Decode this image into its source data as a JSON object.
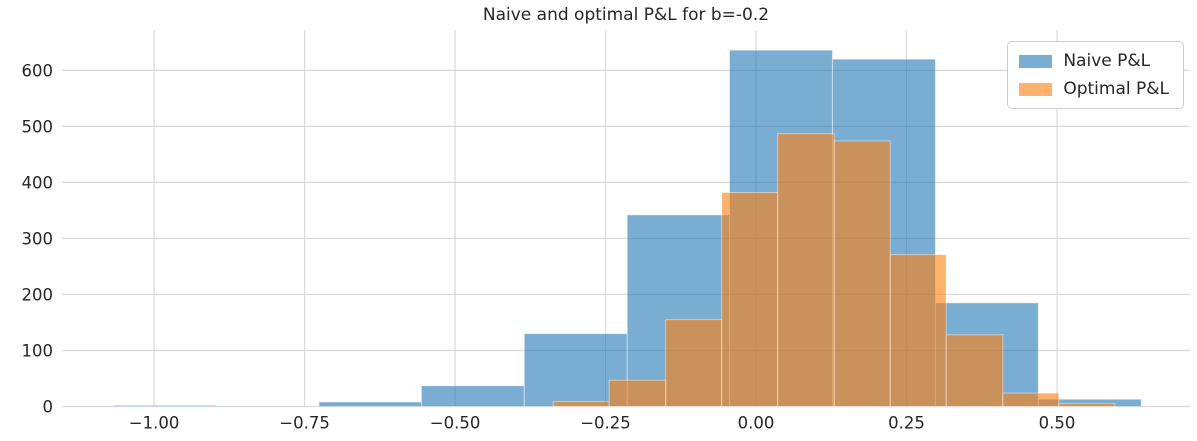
{
  "chart_data": {
    "type": "histogram",
    "title": "Naive and optimal P&L for b=-0.2",
    "xlabel": "",
    "ylabel": "",
    "x_ticks": [
      -1.0,
      -0.75,
      -0.5,
      -0.25,
      0.0,
      0.25,
      0.5
    ],
    "x_tick_labels": [
      "−1.00",
      "−0.75",
      "−0.50",
      "−0.25",
      "0.00",
      "0.25",
      "0.50"
    ],
    "y_ticks": [
      0,
      100,
      200,
      300,
      400,
      500,
      600
    ],
    "y_tick_labels": [
      "0",
      "100",
      "200",
      "300",
      "400",
      "500",
      "600"
    ],
    "xlim": [
      -1.153,
      0.721
    ],
    "ylim": [
      0,
      672
    ],
    "grid": true,
    "grid_color": "#d9d9d9",
    "text_color": "#262626",
    "legend_position": "upper right",
    "series": [
      {
        "name": "Naive P&L",
        "color": "#1f77b4",
        "alpha": 0.6,
        "bin_edges": [
          -1.068,
          -0.897,
          -0.726,
          -0.556,
          -0.385,
          -0.214,
          -0.044,
          0.127,
          0.298,
          0.469,
          0.64
        ],
        "counts": [
          2,
          0,
          8,
          37,
          130,
          342,
          636,
          620,
          185,
          13
        ]
      },
      {
        "name": "Optimal P&L",
        "color": "#ff7f0e",
        "alpha": 0.6,
        "bin_edges": [
          -0.337,
          -0.244,
          -0.15,
          -0.057,
          0.036,
          0.13,
          0.223,
          0.316,
          0.41,
          0.503,
          0.596
        ],
        "counts": [
          9,
          47,
          155,
          382,
          487,
          474,
          271,
          128,
          24,
          5
        ]
      }
    ]
  }
}
